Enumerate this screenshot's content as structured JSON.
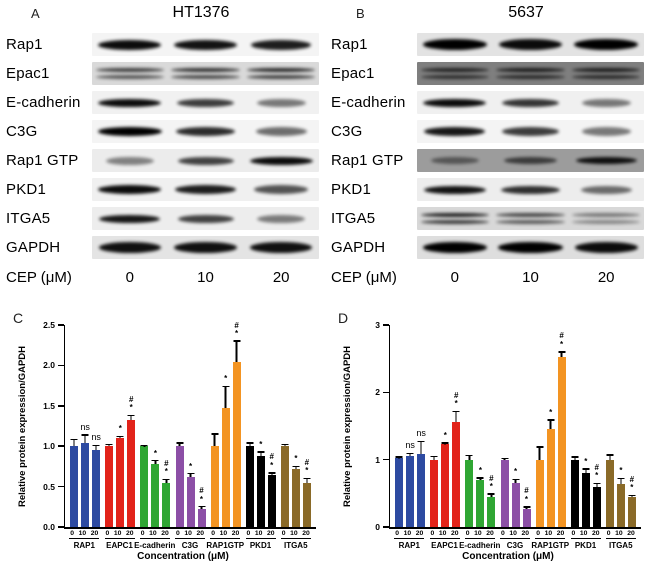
{
  "blot_a": {
    "panel_label": "A",
    "title": "HT1376",
    "cep_label": "CEP (μM)",
    "doses": [
      "0",
      "10",
      "20"
    ],
    "rows": [
      {
        "label": "Rap1",
        "bg": "#f4f4f4",
        "type": "single",
        "band_h": 10,
        "bands": [
          0.95,
          0.92,
          0.88
        ]
      },
      {
        "label": "Epac1",
        "bg": "#d9d9d9",
        "type": "doublet",
        "band_h": 4,
        "bands": [
          0.72,
          0.78,
          0.82
        ]
      },
      {
        "label": "E-cadherin",
        "bg": "#f1f1f1",
        "type": "single",
        "band_h": 8,
        "bands": [
          0.95,
          0.75,
          0.5
        ]
      },
      {
        "label": "C3G",
        "bg": "#f4f4f4",
        "type": "single",
        "band_h": 9,
        "bands": [
          1.0,
          0.82,
          0.55
        ]
      },
      {
        "label": "Rap1 GTP",
        "bg": "#ececec",
        "type": "single",
        "band_h": 8,
        "bands": [
          0.45,
          0.72,
          0.95
        ]
      },
      {
        "label": "PKD1",
        "bg": "#f0f0f0",
        "type": "single",
        "band_h": 9,
        "bands": [
          0.95,
          0.88,
          0.65
        ]
      },
      {
        "label": "ITGA5",
        "bg": "#ededed",
        "type": "single",
        "band_h": 8,
        "bands": [
          0.9,
          0.72,
          0.48
        ]
      },
      {
        "label": "GAPDH",
        "bg": "#e4e4e4",
        "type": "single",
        "band_h": 11,
        "bands": [
          0.93,
          0.93,
          0.93
        ]
      }
    ]
  },
  "blot_b": {
    "panel_label": "B",
    "title": "5637",
    "cep_label": "CEP (μM)",
    "doses": [
      "0",
      "10",
      "20"
    ],
    "rows": [
      {
        "label": "Rap1",
        "bg": "#e3e3e3",
        "type": "single",
        "band_h": 11,
        "bands": [
          1.0,
          0.95,
          1.0
        ]
      },
      {
        "label": "Epac1",
        "bg": "#7f7f7f",
        "type": "doublet",
        "band_h": 4,
        "bands": [
          0.75,
          0.8,
          0.8
        ]
      },
      {
        "label": "E-cadherin",
        "bg": "#f0f0f0",
        "type": "single",
        "band_h": 8,
        "bands": [
          0.95,
          0.78,
          0.5
        ]
      },
      {
        "label": "C3G",
        "bg": "#f4f4f4",
        "type": "single",
        "band_h": 9,
        "bands": [
          0.9,
          0.75,
          0.5
        ]
      },
      {
        "label": "Rap1 GTP",
        "bg": "#9c9c9c",
        "type": "single",
        "band_h": 7,
        "bands": [
          0.45,
          0.62,
          0.9
        ]
      },
      {
        "label": "PKD1",
        "bg": "#ededed",
        "type": "single",
        "band_h": 8,
        "bands": [
          0.92,
          0.8,
          0.55
        ]
      },
      {
        "label": "ITGA5",
        "bg": "#d8d8d8",
        "type": "doublet",
        "band_h": 4,
        "bands": [
          0.85,
          0.68,
          0.45
        ]
      },
      {
        "label": "GAPDH",
        "bg": "#dedede",
        "type": "single",
        "band_h": 11,
        "bands": [
          1.0,
          1.0,
          0.95
        ]
      }
    ]
  },
  "chart_data": [
    {
      "panel_label": "C",
      "type": "bar",
      "title": "",
      "ylabel": "Relative protein expression/GAPDH",
      "xlabel": "Concentration (μM)",
      "ylim": [
        0,
        2.5
      ],
      "yticks": [
        0,
        0.5,
        1.0,
        1.5,
        2.0,
        2.5
      ],
      "ytick_labels": [
        "0.0",
        "0.5",
        "1.0",
        "1.5",
        "2.0",
        "2.5"
      ],
      "grid": false,
      "legend_position": "none",
      "doses": [
        "0",
        "10",
        "20"
      ],
      "groups": [
        {
          "name": "RAP1",
          "color": "#2d4aa1",
          "values": [
            1.0,
            1.04,
            0.95
          ],
          "errors": [
            0.09,
            0.11,
            0.07
          ],
          "annotations": [
            "",
            "ns",
            "ns"
          ]
        },
        {
          "name": "EAPC1",
          "color": "#e2231a",
          "values": [
            1.0,
            1.1,
            1.32
          ],
          "errors": [
            0.03,
            0.03,
            0.07
          ],
          "annotations": [
            "",
            "*",
            "#*"
          ]
        },
        {
          "name": "E-cadherin",
          "color": "#2fa633",
          "values": [
            1.0,
            0.78,
            0.54
          ],
          "errors": [
            0.02,
            0.05,
            0.06
          ],
          "annotations": [
            "",
            "*",
            "#*"
          ]
        },
        {
          "name": "C3G",
          "color": "#8c4fa6",
          "values": [
            1.0,
            0.62,
            0.22
          ],
          "errors": [
            0.05,
            0.05,
            0.04
          ],
          "annotations": [
            "",
            "*",
            "#*"
          ]
        },
        {
          "name": "RAP1GTP",
          "color": "#f39422",
          "values": [
            1.0,
            1.47,
            2.04
          ],
          "errors": [
            0.16,
            0.28,
            0.27
          ],
          "annotations": [
            "",
            "*",
            "#*"
          ]
        },
        {
          "name": "PKD1",
          "color": "#000000",
          "values": [
            1.0,
            0.88,
            0.64
          ],
          "errors": [
            0.05,
            0.06,
            0.04
          ],
          "annotations": [
            "",
            "*",
            "#*"
          ]
        },
        {
          "name": "ITGA5",
          "color": "#8a6a28",
          "values": [
            1.0,
            0.72,
            0.55
          ],
          "errors": [
            0.03,
            0.04,
            0.06
          ],
          "annotations": [
            "",
            "*",
            "#*"
          ]
        }
      ]
    },
    {
      "panel_label": "D",
      "type": "bar",
      "title": "",
      "ylabel": "Relative protein expression/GAPDH",
      "xlabel": "Concentration (μM)",
      "ylim": [
        0,
        3
      ],
      "yticks": [
        0,
        1,
        2,
        3
      ],
      "ytick_labels": [
        "0",
        "1",
        "2",
        "3"
      ],
      "grid": false,
      "legend_position": "none",
      "doses": [
        "0",
        "10",
        "20"
      ],
      "groups": [
        {
          "name": "RAP1",
          "color": "#2d4aa1",
          "values": [
            1.02,
            1.05,
            1.09
          ],
          "errors": [
            0.03,
            0.05,
            0.19
          ],
          "annotations": [
            "",
            "ns",
            "ns"
          ]
        },
        {
          "name": "EAPC1",
          "color": "#e2231a",
          "values": [
            1.0,
            1.23,
            1.56
          ],
          "errors": [
            0.06,
            0.03,
            0.17
          ],
          "annotations": [
            "",
            "*",
            "#*"
          ]
        },
        {
          "name": "E-cadherin",
          "color": "#2fa633",
          "values": [
            1.0,
            0.7,
            0.45
          ],
          "errors": [
            0.07,
            0.04,
            0.05
          ],
          "annotations": [
            "",
            "*",
            "#*"
          ]
        },
        {
          "name": "C3G",
          "color": "#8c4fa6",
          "values": [
            1.0,
            0.65,
            0.27
          ],
          "errors": [
            0.03,
            0.07,
            0.04
          ],
          "annotations": [
            "",
            "*",
            "#*"
          ]
        },
        {
          "name": "RAP1GTP",
          "color": "#f39422",
          "values": [
            1.0,
            1.45,
            2.53
          ],
          "errors": [
            0.2,
            0.15,
            0.08
          ],
          "annotations": [
            "",
            "*",
            "#*"
          ]
        },
        {
          "name": "PKD1",
          "color": "#000000",
          "values": [
            1.0,
            0.8,
            0.6
          ],
          "errors": [
            0.05,
            0.07,
            0.06
          ],
          "annotations": [
            "",
            "*",
            "#*"
          ]
        },
        {
          "name": "ITGA5",
          "color": "#8a6a28",
          "values": [
            1.0,
            0.64,
            0.44
          ],
          "errors": [
            0.08,
            0.09,
            0.04
          ],
          "annotations": [
            "",
            "*",
            "#*"
          ]
        }
      ]
    }
  ]
}
